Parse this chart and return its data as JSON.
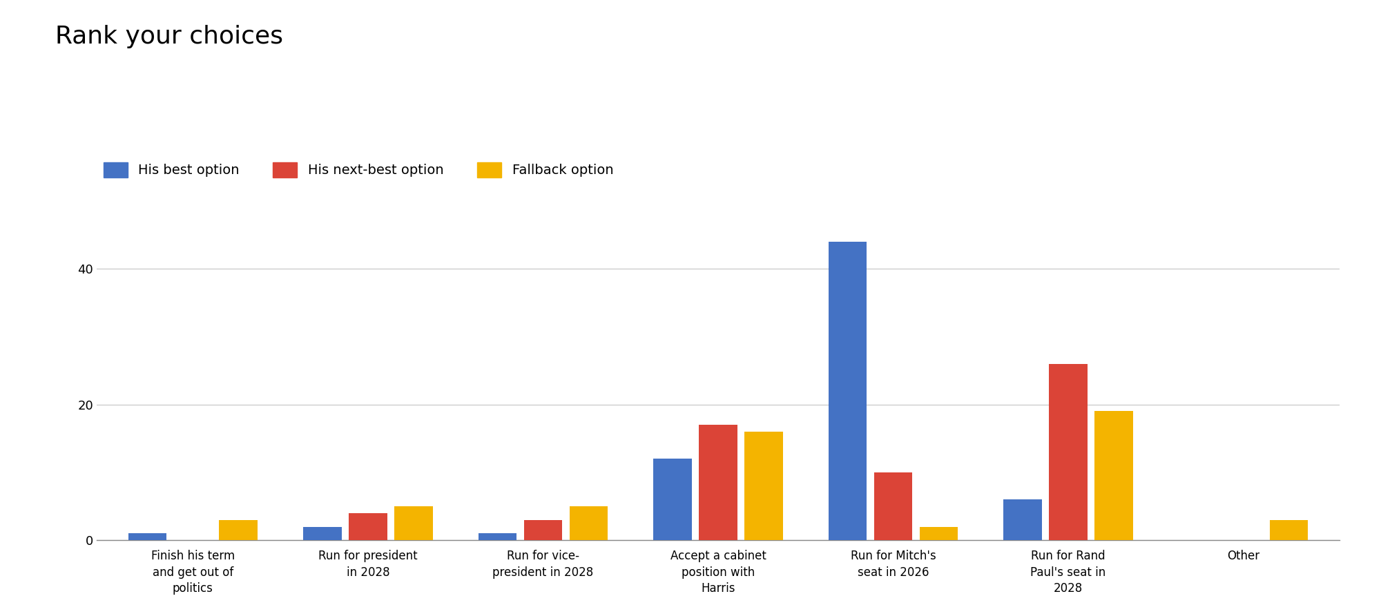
{
  "title": "Rank your choices",
  "title_fontsize": 26,
  "background_color": "#ffffff",
  "categories": [
    "Finish his term\nand get out of\npolitics",
    "Run for president\nin 2028",
    "Run for vice-\npresident in 2028",
    "Accept a cabinet\nposition with\nHarris",
    "Run for Mitch's\nseat in 2026",
    "Run for Rand\nPaul's seat in\n2028",
    "Other"
  ],
  "series": [
    {
      "name": "His best option",
      "color": "#4472c4",
      "values": [
        1,
        2,
        1,
        12,
        44,
        6,
        0
      ]
    },
    {
      "name": "His next-best option",
      "color": "#db4437",
      "values": [
        0,
        4,
        3,
        17,
        10,
        26,
        0
      ]
    },
    {
      "name": "Fallback option",
      "color": "#f4b400",
      "values": [
        3,
        5,
        5,
        16,
        2,
        19,
        3
      ]
    }
  ],
  "ylim": [
    0,
    47
  ],
  "yticks": [
    0,
    20,
    40
  ],
  "grid_color": "#cccccc",
  "bar_width": 0.22,
  "legend_fontsize": 14,
  "tick_fontsize": 13,
  "xtick_fontsize": 12,
  "bar_gap": 0.04
}
